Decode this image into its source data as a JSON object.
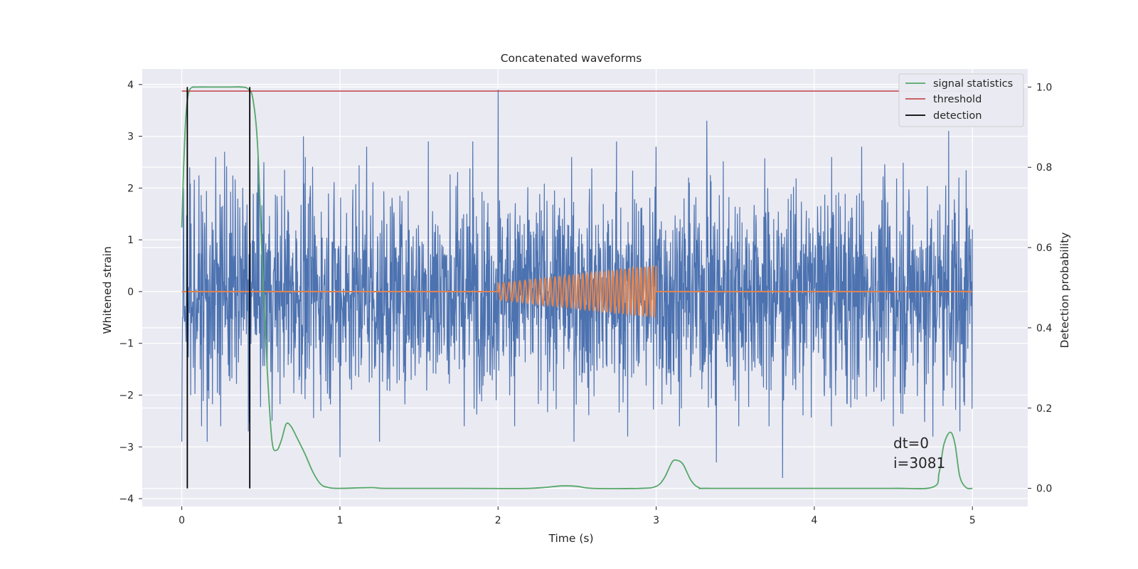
{
  "chart_data": {
    "type": "line",
    "title": "Concatenated waveforms",
    "xlabel": "Time (s)",
    "ylabel": "Whitened strain",
    "y2label": "Detection probability",
    "xlim": [
      -0.25,
      5.35
    ],
    "ylim": [
      -4.15,
      4.3
    ],
    "y2lim": [
      -0.045,
      1.045
    ],
    "xticks": [
      0,
      1,
      2,
      3,
      4,
      5
    ],
    "xtick_labels": [
      "0",
      "1",
      "2",
      "3",
      "4",
      "5"
    ],
    "yticks": [
      -4,
      -3,
      -2,
      -1,
      0,
      1,
      2,
      3,
      4
    ],
    "ytick_labels": [
      "−4",
      "−3",
      "−2",
      "−1",
      "0",
      "1",
      "2",
      "3",
      "4"
    ],
    "y2ticks": [
      0.0,
      0.2,
      0.4,
      0.6,
      0.8,
      1.0
    ],
    "y2tick_labels": [
      "0.0",
      "0.2",
      "0.4",
      "0.6",
      "0.8",
      "1.0"
    ],
    "grid": true,
    "legend_position": "top-right",
    "legend": [
      {
        "label": "signal statistics",
        "color": "#55a868"
      },
      {
        "label": "threshold",
        "color": "#c44e52"
      },
      {
        "label": "detection",
        "color": "#000000"
      }
    ],
    "annotation_lines": [
      "dt=0",
      "i=3081"
    ],
    "annotation_anchor": {
      "x": 4.5,
      "y": -3.0
    },
    "series": [
      {
        "kind": "noise",
        "color": "#4c72b0",
        "x_range": [
          0,
          5
        ],
        "amplitude_typical": 1.0,
        "peaks": [
          {
            "x": 0.0,
            "y": -2.9
          },
          {
            "x": 0.01,
            "y": 2.0
          },
          {
            "x": 0.05,
            "y": 2.4
          },
          {
            "x": 0.16,
            "y": -2.9
          },
          {
            "x": 0.27,
            "y": 2.7
          },
          {
            "x": 0.42,
            "y": -2.7
          },
          {
            "x": 0.52,
            "y": 2.5
          },
          {
            "x": 0.77,
            "y": 3.0
          },
          {
            "x": 1.0,
            "y": -3.2
          },
          {
            "x": 1.17,
            "y": 2.8
          },
          {
            "x": 1.25,
            "y": -2.9
          },
          {
            "x": 1.56,
            "y": 2.9
          },
          {
            "x": 1.84,
            "y": 2.9
          },
          {
            "x": 2.0,
            "y": 3.9
          },
          {
            "x": 2.48,
            "y": -2.9
          },
          {
            "x": 2.75,
            "y": 2.9
          },
          {
            "x": 2.82,
            "y": -2.8
          },
          {
            "x": 3.0,
            "y": 2.8
          },
          {
            "x": 3.32,
            "y": 3.3
          },
          {
            "x": 3.38,
            "y": -3.3
          },
          {
            "x": 3.8,
            "y": -3.6
          },
          {
            "x": 4.3,
            "y": 2.8
          },
          {
            "x": 4.5,
            "y": -2.6
          },
          {
            "x": 4.75,
            "y": -2.8
          },
          {
            "x": 4.85,
            "y": 3.1
          },
          {
            "x": 4.92,
            "y": -2.7
          },
          {
            "x": 5.0,
            "y": 1.2
          }
        ]
      },
      {
        "kind": "chirp",
        "color": "#dd8452",
        "baseline_x": [
          0,
          5
        ],
        "baseline_y": 0,
        "chirp_x": [
          2.0,
          3.0
        ],
        "cycles": 35,
        "amplitude_start": 0.16,
        "amplitude_end": 0.5
      },
      {
        "name": "signal statistics",
        "axis": "right",
        "color": "#55a868",
        "points": [
          [
            0.0,
            0.65
          ],
          [
            0.01,
            0.78
          ],
          [
            0.025,
            0.92
          ],
          [
            0.04,
            0.98
          ],
          [
            0.06,
            0.998
          ],
          [
            0.1,
            1.0
          ],
          [
            0.2,
            1.0
          ],
          [
            0.3,
            1.0
          ],
          [
            0.38,
            1.0
          ],
          [
            0.42,
            0.995
          ],
          [
            0.45,
            0.97
          ],
          [
            0.48,
            0.85
          ],
          [
            0.51,
            0.55
          ],
          [
            0.54,
            0.3
          ],
          [
            0.57,
            0.12
          ],
          [
            0.6,
            0.095
          ],
          [
            0.63,
            0.12
          ],
          [
            0.66,
            0.16
          ],
          [
            0.69,
            0.155
          ],
          [
            0.73,
            0.125
          ],
          [
            0.78,
            0.085
          ],
          [
            0.83,
            0.04
          ],
          [
            0.88,
            0.01
          ],
          [
            0.93,
            0.002
          ],
          [
            1.0,
            0.0
          ],
          [
            1.2,
            0.002
          ],
          [
            1.3,
            0.0
          ],
          [
            1.8,
            0.0
          ],
          [
            2.2,
            0.0
          ],
          [
            2.4,
            0.006
          ],
          [
            2.5,
            0.005
          ],
          [
            2.6,
            0.0
          ],
          [
            2.9,
            0.0
          ],
          [
            3.0,
            0.005
          ],
          [
            3.05,
            0.025
          ],
          [
            3.1,
            0.065
          ],
          [
            3.13,
            0.07
          ],
          [
            3.17,
            0.06
          ],
          [
            3.22,
            0.02
          ],
          [
            3.27,
            0.002
          ],
          [
            3.35,
            0.0
          ],
          [
            4.0,
            0.0
          ],
          [
            4.5,
            0.0
          ],
          [
            4.75,
            0.003
          ],
          [
            4.79,
            0.04
          ],
          [
            4.82,
            0.11
          ],
          [
            4.86,
            0.14
          ],
          [
            4.89,
            0.11
          ],
          [
            4.92,
            0.03
          ],
          [
            4.96,
            0.002
          ],
          [
            5.0,
            0.0
          ]
        ]
      },
      {
        "name": "threshold",
        "axis": "right",
        "color": "#c44e52",
        "points": [
          [
            0.0,
            0.99
          ],
          [
            5.0,
            0.99
          ]
        ]
      },
      {
        "name": "detection",
        "axis": "right",
        "color": "#000000",
        "segments": [
          {
            "x": 0.035,
            "y0": 0.0,
            "y1": 1.0
          },
          {
            "x": 0.43,
            "y0": 0.0,
            "y1": 1.0
          }
        ]
      }
    ]
  }
}
